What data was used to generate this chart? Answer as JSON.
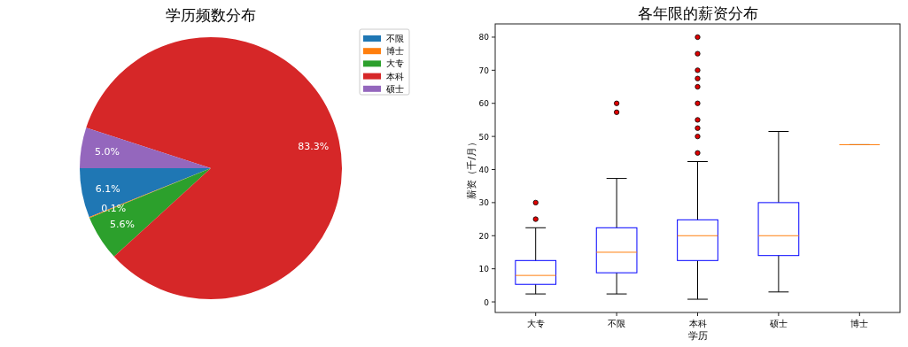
{
  "chart_data": [
    {
      "type": "pie",
      "title": "学历频数分布",
      "categories": [
        "不限",
        "博士",
        "大专",
        "本科",
        "硕士"
      ],
      "values": [
        6.1,
        0.1,
        5.6,
        83.3,
        5.0
      ],
      "colors": [
        "#1f77b4",
        "#ff7f0e",
        "#2ca02c",
        "#d62728",
        "#9467bd"
      ],
      "value_labels": [
        "6.1%",
        "0.1%",
        "5.6%",
        "83.3%",
        "5.0%"
      ],
      "legend": "top right"
    },
    {
      "type": "box",
      "title": "各年限的薪资分布",
      "xlabel": "学历",
      "ylabel": "薪资（千/月）",
      "categories": [
        "大专",
        "不限",
        "本科",
        "硕士",
        "博士"
      ],
      "ylim": [
        -3.2,
        84
      ],
      "yticks": [
        0,
        10,
        20,
        30,
        40,
        50,
        60,
        70,
        80
      ],
      "marker": "circle",
      "grid": false,
      "boxes": [
        {
          "low": 2.4,
          "q1": 5.3,
          "median": 8,
          "q3": 12.5,
          "high": 22.4,
          "outliers": [
            25,
            30
          ]
        },
        {
          "low": 2.4,
          "q1": 8.8,
          "median": 15,
          "q3": 22.4,
          "high": 37.3,
          "outliers": [
            57.3,
            60
          ]
        },
        {
          "low": 0.8,
          "q1": 12.5,
          "median": 20,
          "q3": 24.8,
          "high": 42.4,
          "outliers": [
            45,
            50,
            52.5,
            55,
            60,
            65,
            67.5,
            70,
            75,
            80
          ]
        },
        {
          "low": 3,
          "q1": 14,
          "median": 20,
          "q3": 30,
          "high": 51.5
        },
        {
          "low": 47.5,
          "q1": 47.5,
          "median": 47.5,
          "q3": 47.5,
          "high": 47.5
        }
      ]
    }
  ]
}
